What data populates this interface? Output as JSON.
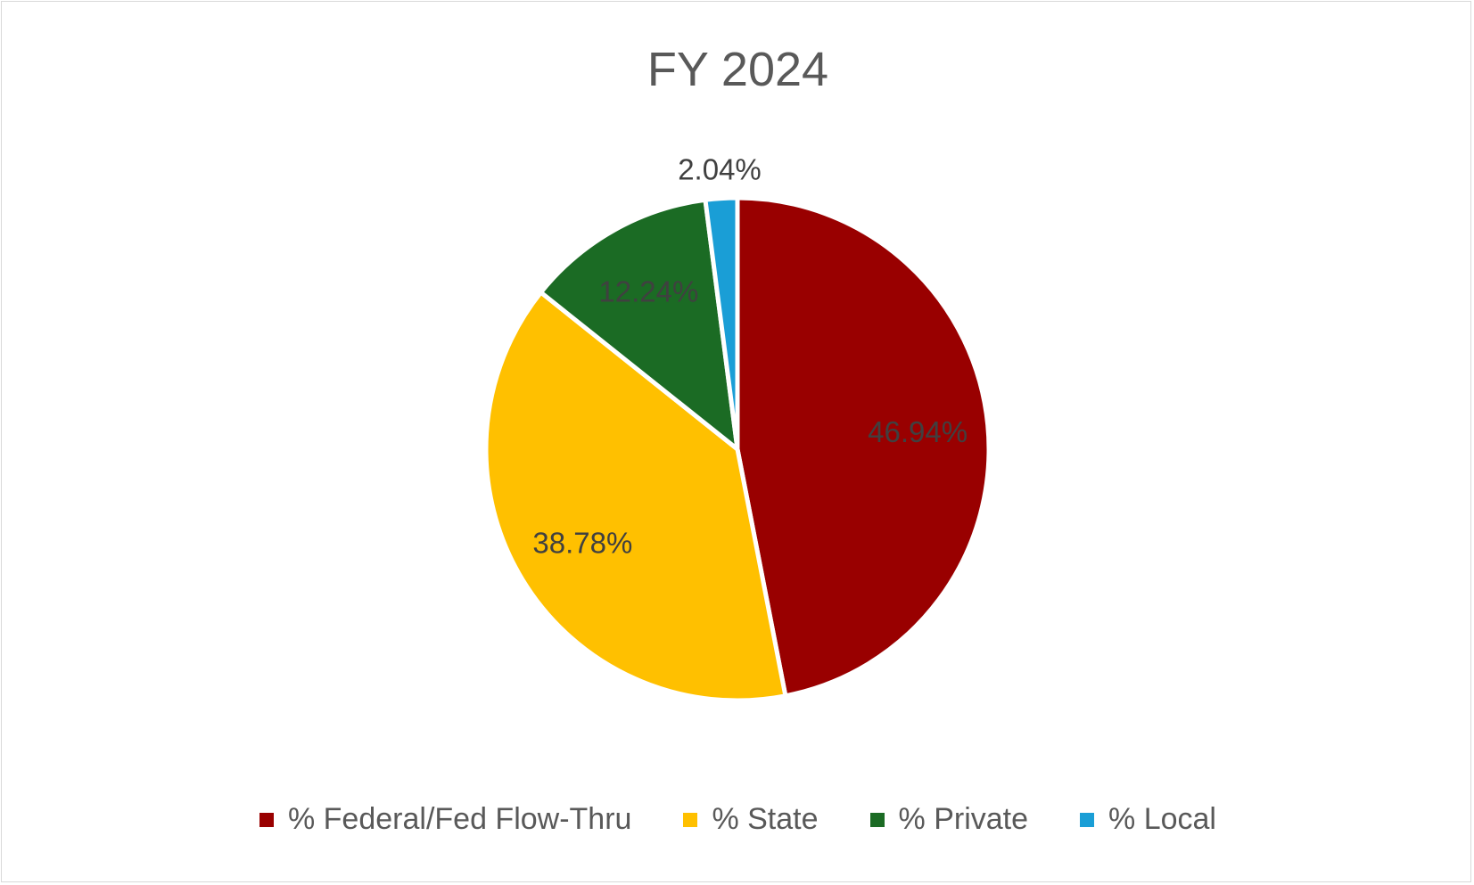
{
  "chart_data": {
    "type": "pie",
    "title": "FY 2024",
    "slices": [
      {
        "name": "% Federal/Fed Flow-Thru",
        "value": 46.94,
        "label": "46.94%",
        "color": "#990000"
      },
      {
        "name": "% State",
        "value": 38.78,
        "label": "38.78%",
        "color": "#ffc000"
      },
      {
        "name": "% Private",
        "value": 12.24,
        "label": "12.24%",
        "color": "#1b6b24"
      },
      {
        "name": "% Local",
        "value": 2.04,
        "label": "2.04%",
        "color": "#1a9ed6"
      }
    ],
    "legend_position": "bottom",
    "start_angle": "12 o'clock",
    "direction": "clockwise"
  }
}
